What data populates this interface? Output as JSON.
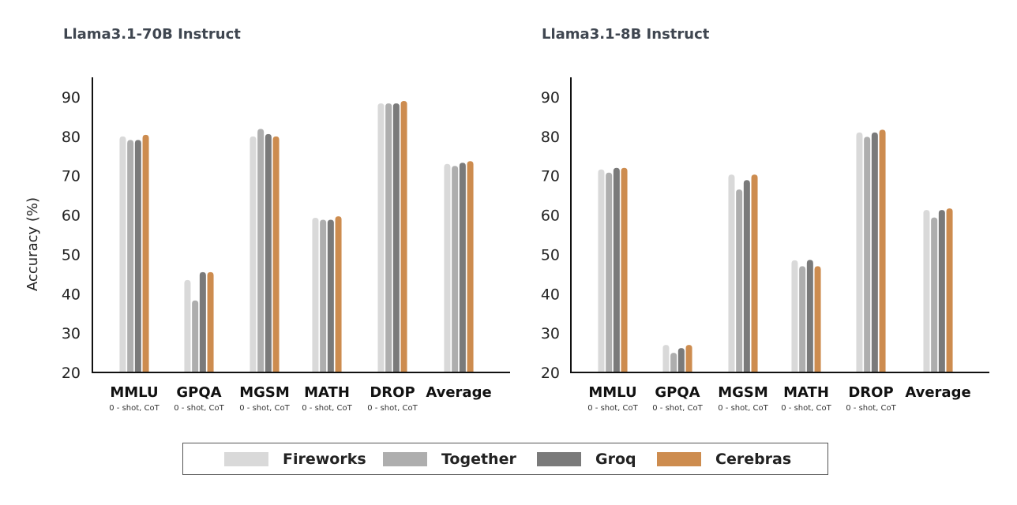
{
  "chart_data": [
    {
      "type": "bar",
      "title": "Llama3.1-70B Instruct",
      "ylabel": "Accuracy (%)",
      "ylim": [
        20,
        90
      ],
      "yticks": [
        20,
        30,
        40,
        50,
        60,
        70,
        80,
        90
      ],
      "categories": [
        "MMLU",
        "GPQA",
        "MGSM",
        "MATH",
        "DROP",
        "Average"
      ],
      "category_subtitles": [
        "0 - shot, CoT",
        "0 - shot, CoT",
        "0 - shot, CoT",
        "0 - shot, CoT",
        "0 - shot, CoT",
        ""
      ],
      "series": [
        {
          "name": "Fireworks",
          "values": [
            80.0,
            43.5,
            80.0,
            59.3,
            88.4,
            73.0
          ]
        },
        {
          "name": "Together",
          "values": [
            79.1,
            38.3,
            81.9,
            58.8,
            88.4,
            72.5
          ]
        },
        {
          "name": "Groq",
          "values": [
            79.1,
            45.5,
            80.6,
            58.8,
            88.4,
            73.3
          ]
        },
        {
          "name": "Cerebras",
          "values": [
            80.4,
            45.5,
            80.0,
            59.7,
            89.0,
            73.7
          ]
        }
      ]
    },
    {
      "type": "bar",
      "title": "Llama3.1-8B Instruct",
      "ylim": [
        20,
        90
      ],
      "yticks": [
        20,
        30,
        40,
        50,
        60,
        70,
        80,
        90
      ],
      "categories": [
        "MMLU",
        "GPQA",
        "MGSM",
        "MATH",
        "DROP",
        "Average"
      ],
      "category_subtitles": [
        "0 - shot, CoT",
        "0 - shot, CoT",
        "0 - shot, CoT",
        "0 - shot, CoT",
        "0 - shot, CoT",
        ""
      ],
      "series": [
        {
          "name": "Fireworks",
          "values": [
            71.6,
            27.0,
            70.3,
            48.5,
            81.0,
            61.3
          ]
        },
        {
          "name": "Together",
          "values": [
            70.8,
            25.0,
            66.5,
            47.0,
            79.9,
            59.4
          ]
        },
        {
          "name": "Groq",
          "values": [
            72.0,
            26.2,
            68.9,
            48.6,
            81.0,
            61.3
          ]
        },
        {
          "name": "Cerebras",
          "values": [
            72.0,
            27.0,
            70.3,
            47.0,
            81.7,
            61.7
          ]
        }
      ]
    }
  ],
  "legend": [
    {
      "name": "Fireworks",
      "color": "#d9d9d9"
    },
    {
      "name": "Together",
      "color": "#aeaeae"
    },
    {
      "name": "Groq",
      "color": "#7a7a7a"
    },
    {
      "name": "Cerebras",
      "color": "#cd8c4f"
    }
  ]
}
